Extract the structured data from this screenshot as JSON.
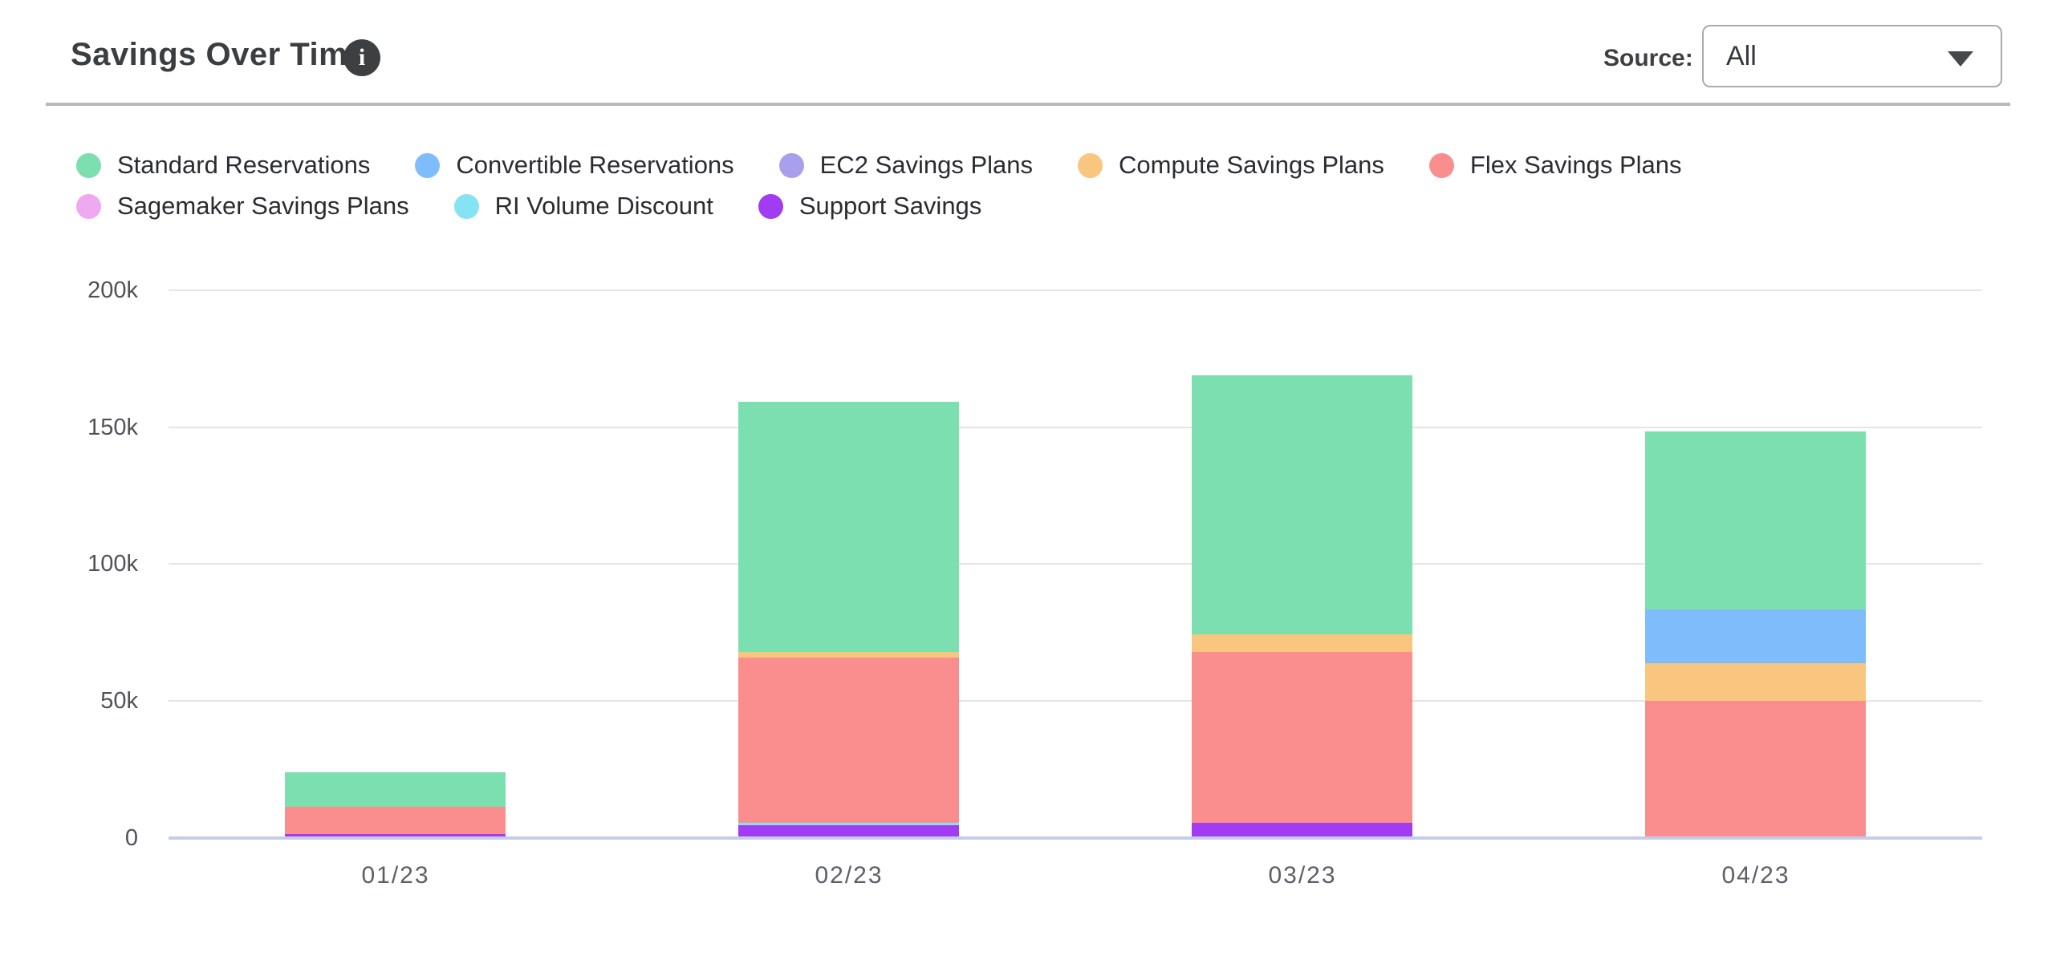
{
  "header": {
    "title": "Savings Over Time",
    "info_icon": "i",
    "source_label": "Source:",
    "source_value": "All"
  },
  "chart_data": {
    "type": "bar",
    "stacked": true,
    "title": "Savings Over Time",
    "categories": [
      "01/23",
      "02/23",
      "03/23",
      "04/23"
    ],
    "series": [
      {
        "name": "Standard Reservations",
        "color": "#7cdfb0",
        "values": [
          12500,
          91500,
          94500,
          65000
        ]
      },
      {
        "name": "Convertible Reservations",
        "color": "#7fbcfc",
        "values": [
          0,
          0,
          0,
          19500
        ]
      },
      {
        "name": "EC2 Savings Plans",
        "color": "#a89fed",
        "values": [
          0,
          0,
          0,
          0
        ]
      },
      {
        "name": "Compute Savings Plans",
        "color": "#f8c67e",
        "values": [
          0,
          2000,
          6500,
          14000
        ]
      },
      {
        "name": "Flex Savings Plans",
        "color": "#fa8e8e",
        "values": [
          10000,
          60500,
          62500,
          49500
        ]
      },
      {
        "name": "Sagemaker Savings Plans",
        "color": "#eea9f1",
        "values": [
          0,
          0,
          0,
          0
        ]
      },
      {
        "name": "RI Volume Discount",
        "color": "#84e4f4",
        "values": [
          0,
          1000,
          0,
          0
        ]
      },
      {
        "name": "Support Savings",
        "color": "#a13cf2",
        "values": [
          1000,
          4000,
          5000,
          0
        ]
      }
    ],
    "stack_order_bottom_to_top": [
      "Support Savings",
      "RI Volume Discount",
      "Sagemaker Savings Plans",
      "Flex Savings Plans",
      "Compute Savings Plans",
      "EC2 Savings Plans",
      "Convertible Reservations",
      "Standard Reservations"
    ],
    "legend_rows": [
      [
        "Standard Reservations",
        "Convertible Reservations",
        "EC2 Savings Plans",
        "Compute Savings Plans",
        "Flex Savings Plans"
      ],
      [
        "Sagemaker Savings Plans",
        "RI Volume Discount",
        "Support Savings"
      ]
    ],
    "yticks": [
      {
        "value": 0,
        "label": "0"
      },
      {
        "value": 50000,
        "label": "50k"
      },
      {
        "value": 100000,
        "label": "100k"
      },
      {
        "value": 150000,
        "label": "150k"
      },
      {
        "value": 200000,
        "label": "200k"
      }
    ],
    "ylim": [
      0,
      200000
    ],
    "xlabel": "",
    "ylabel": "",
    "grid": true,
    "legend_position": "top",
    "colors": {
      "grid": "#e5e5e5",
      "axis": "#c5cce9",
      "divider": "#bababa"
    }
  }
}
